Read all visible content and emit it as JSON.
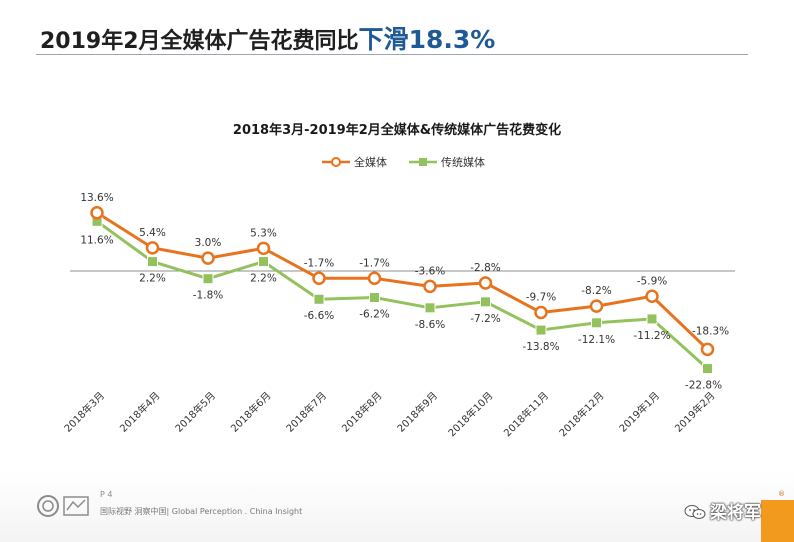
{
  "header": {
    "title_main": "2019年2月全媒体广告花费同比",
    "title_highlight": "下滑",
    "title_value": "18.3%"
  },
  "chart_data": {
    "type": "line",
    "title": "2018年3月-2019年2月全媒体&传统媒体广告花费变化",
    "categories": [
      "2018年3月",
      "2018年4月",
      "2018年5月",
      "2018年6月",
      "2018年7月",
      "2018年8月",
      "2018年9月",
      "2018年10月",
      "2018年11月",
      "2018年12月",
      "2019年1月",
      "2019年2月"
    ],
    "series": [
      {
        "name": "全媒体",
        "color": "#e8731e",
        "values": [
          13.6,
          5.4,
          3.0,
          5.3,
          -1.7,
          -1.7,
          -3.6,
          -2.8,
          -9.7,
          -8.2,
          -5.9,
          -18.3
        ],
        "labels": [
          "13.6%",
          "5.4%",
          "3.0%",
          "5.3%",
          "-1.7%",
          "-1.7%",
          "-3.6%",
          "-2.8%",
          "-9.7%",
          "-8.2%",
          "-5.9%",
          "-18.3%"
        ]
      },
      {
        "name": "传统媒体",
        "color": "#93c15b",
        "values": [
          11.6,
          2.2,
          -1.8,
          2.2,
          -6.6,
          -6.2,
          -8.6,
          -7.2,
          -13.8,
          -12.1,
          -11.2,
          -22.8
        ],
        "labels": [
          "11.6%",
          "2.2%",
          "-1.8%",
          "2.2%",
          "-6.6%",
          "-6.2%",
          "-8.6%",
          "-7.2%",
          "-13.8%",
          "-12.1%",
          "-11.2%",
          "-22.8%"
        ]
      }
    ],
    "legend_position": "top-center",
    "unit": "%",
    "grid": false,
    "zero_line": true
  },
  "footer": {
    "page": "P 4",
    "slogan": "国际视野 洞察中国| Global Perception . China Insight",
    "brand": "梁将军",
    "reg_mark": "®"
  },
  "colors": {
    "title_highlight": "#1f5a96",
    "accent_orange": "#f29a1d"
  }
}
